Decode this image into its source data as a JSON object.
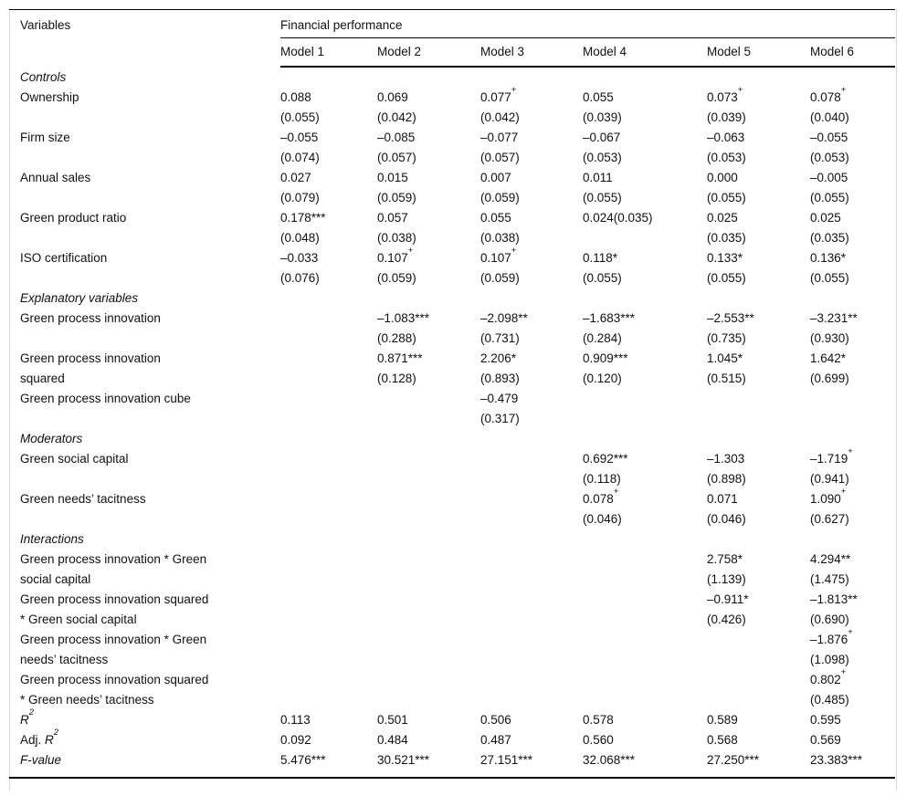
{
  "colors": {
    "background": "#ffffff",
    "text": "#111111",
    "rule": "#000000",
    "faint_edge": "#d9d9d9"
  },
  "header": {
    "variables_label": "Variables",
    "group_label": "Financial performance",
    "models": [
      "Model 1",
      "Model 2",
      "Model 3",
      "Model 4",
      "Model 5",
      "Model 6"
    ]
  },
  "rows": [
    {
      "type": "section",
      "label": "Controls"
    },
    {
      "type": "var",
      "label": [
        "Ownership"
      ],
      "cells": [
        {
          "c": "0.088",
          "m": "",
          "se": "(0.055)"
        },
        {
          "c": "0.069",
          "m": "",
          "se": "(0.042)"
        },
        {
          "c": "0.077",
          "m": "+",
          "se": "(0.042)"
        },
        {
          "c": "0.055",
          "m": "",
          "se": "(0.039)"
        },
        {
          "c": "0.073",
          "m": "+",
          "se": "(0.039)"
        },
        {
          "c": "0.078",
          "m": "+",
          "se": "(0.040)"
        }
      ]
    },
    {
      "type": "var",
      "label": [
        "Firm size"
      ],
      "cells": [
        {
          "c": "–0.055",
          "m": "",
          "se": "(0.074)"
        },
        {
          "c": "–0.085",
          "m": "",
          "se": "(0.057)"
        },
        {
          "c": "–0.077",
          "m": "",
          "se": "(0.057)"
        },
        {
          "c": "–0.067",
          "m": "",
          "se": "(0.053)"
        },
        {
          "c": "–0.063",
          "m": "",
          "se": "(0.053)"
        },
        {
          "c": "–0.055",
          "m": "",
          "se": "(0.053)"
        }
      ]
    },
    {
      "type": "var",
      "label": [
        "Annual sales"
      ],
      "cells": [
        {
          "c": "0.027",
          "m": "",
          "se": "(0.079)"
        },
        {
          "c": "0.015",
          "m": "",
          "se": "(0.059)"
        },
        {
          "c": "0.007",
          "m": "",
          "se": "(0.059)"
        },
        {
          "c": "0.011",
          "m": "",
          "se": "(0.055)"
        },
        {
          "c": "0.000",
          "m": "",
          "se": "(0.055)"
        },
        {
          "c": "–0.005",
          "m": "",
          "se": "(0.055)"
        }
      ]
    },
    {
      "type": "var",
      "label": [
        "Green product ratio"
      ],
      "cells": [
        {
          "c": "0.178",
          "m": "***",
          "se": "(0.048)"
        },
        {
          "c": "0.057",
          "m": "",
          "se": "(0.038)"
        },
        {
          "c": "0.055",
          "m": "",
          "se": "(0.038)"
        },
        {
          "c": "0.024(0.035)",
          "m": "",
          "se": ""
        },
        {
          "c": "0.025",
          "m": "",
          "se": "(0.035)"
        },
        {
          "c": "0.025",
          "m": "",
          "se": "(0.035)"
        }
      ]
    },
    {
      "type": "var",
      "label": [
        "ISO certification"
      ],
      "cells": [
        {
          "c": "–0.033",
          "m": "",
          "se": "(0.076)"
        },
        {
          "c": "0.107",
          "m": "+",
          "se": "(0.059)"
        },
        {
          "c": "0.107",
          "m": "+",
          "se": "(0.059)"
        },
        {
          "c": "0.118",
          "m": "*",
          "se": "(0.055)"
        },
        {
          "c": "0.133",
          "m": "*",
          "se": "(0.055)"
        },
        {
          "c": "0.136",
          "m": "*",
          "se": "(0.055)"
        }
      ]
    },
    {
      "type": "section",
      "label": "Explanatory variables"
    },
    {
      "type": "var",
      "label": [
        "Green process innovation"
      ],
      "cells": [
        null,
        {
          "c": "–1.083",
          "m": "***",
          "se": "(0.288)"
        },
        {
          "c": "–2.098",
          "m": "**",
          "se": "(0.731)"
        },
        {
          "c": "–1.683",
          "m": "***",
          "se": "(0.284)"
        },
        {
          "c": "–2.553",
          "m": "**",
          "se": "(0.735)"
        },
        {
          "c": "–3.231",
          "m": "**",
          "se": "(0.930)"
        }
      ]
    },
    {
      "type": "var",
      "label": [
        "Green process innovation",
        "squared"
      ],
      "cells": [
        null,
        {
          "c": "0.871",
          "m": "***",
          "se": "(0.128)"
        },
        {
          "c": "2.206",
          "m": "*",
          "se": "(0.893)"
        },
        {
          "c": "0.909",
          "m": "***",
          "se": "(0.120)"
        },
        {
          "c": "1.045",
          "m": "*",
          "se": "(0.515)"
        },
        {
          "c": "1.642",
          "m": "*",
          "se": "(0.699)"
        }
      ]
    },
    {
      "type": "var",
      "label": [
        "Green process innovation cube"
      ],
      "cells": [
        null,
        null,
        {
          "c": "–0.479",
          "m": "",
          "se": "(0.317)"
        },
        null,
        null,
        null
      ]
    },
    {
      "type": "section",
      "label": "Moderators"
    },
    {
      "type": "var",
      "label": [
        "Green social capital"
      ],
      "cells": [
        null,
        null,
        null,
        {
          "c": "0.692",
          "m": "***",
          "se": "(0.118)"
        },
        {
          "c": "–1.303",
          "m": "",
          "se": "(0.898)"
        },
        {
          "c": "–1.719",
          "m": "+",
          "se": "(0.941)"
        }
      ]
    },
    {
      "type": "var",
      "label": [
        "Green needs’ tacitness"
      ],
      "cells": [
        null,
        null,
        null,
        {
          "c": "0.078",
          "m": "+",
          "se": "(0.046)"
        },
        {
          "c": "0.071",
          "m": "",
          "se": "(0.046)"
        },
        {
          "c": "1.090",
          "m": "+",
          "se": "(0.627)"
        }
      ]
    },
    {
      "type": "section",
      "label": "Interactions"
    },
    {
      "type": "var",
      "label": [
        "Green process innovation * Green",
        "social capital"
      ],
      "cells": [
        null,
        null,
        null,
        null,
        {
          "c": "2.758",
          "m": "*",
          "se": "(1.139)"
        },
        {
          "c": "4.294",
          "m": "**",
          "se": "(1.475)"
        }
      ]
    },
    {
      "type": "var",
      "label": [
        "Green process innovation squared",
        "* Green social capital"
      ],
      "cells": [
        null,
        null,
        null,
        null,
        {
          "c": "–0.911",
          "m": "*",
          "se": "(0.426)"
        },
        {
          "c": "–1.813",
          "m": "**",
          "se": "(0.690)"
        }
      ]
    },
    {
      "type": "var",
      "label": [
        "Green process innovation * Green",
        "needs’ tacitness"
      ],
      "cells": [
        null,
        null,
        null,
        null,
        null,
        {
          "c": "–1.876",
          "m": "+",
          "se": "(1.098)"
        }
      ]
    },
    {
      "type": "var",
      "label": [
        "Green process innovation squared",
        "* Green needs’ tacitness"
      ],
      "cells": [
        null,
        null,
        null,
        null,
        null,
        {
          "c": "0.802",
          "m": "+",
          "se": "(0.485)"
        }
      ]
    },
    {
      "type": "stat",
      "label_parts": [
        {
          "t": "R",
          "i": true
        },
        {
          "t": "2",
          "i": true,
          "sup": true
        }
      ],
      "values": [
        "0.113",
        "0.501",
        "0.506",
        "0.578",
        "0.589",
        "0.595"
      ]
    },
    {
      "type": "stat",
      "label_parts": [
        {
          "t": "Adj. "
        },
        {
          "t": "R",
          "i": true
        },
        {
          "t": "2",
          "i": true,
          "sup": true
        }
      ],
      "values": [
        "0.092",
        "0.484",
        "0.487",
        "0.560",
        "0.568",
        "0.569"
      ]
    },
    {
      "type": "stat",
      "label_parts": [
        {
          "t": "F-value",
          "i": true
        }
      ],
      "values": [
        "5.476***",
        "30.521***",
        "27.151***",
        "32.068***",
        "27.250***",
        "23.383***"
      ]
    }
  ]
}
